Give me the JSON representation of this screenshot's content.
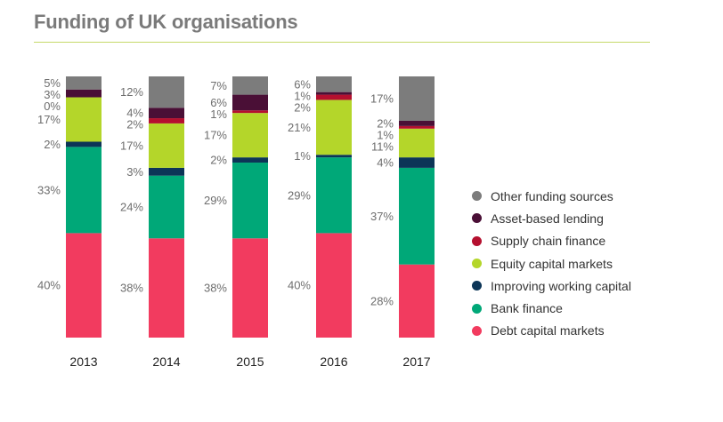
{
  "title": "Funding of UK organisations",
  "chart_data": {
    "type": "bar",
    "stacked": true,
    "title": "Funding of UK organisations",
    "categories": [
      "2013",
      "2014",
      "2015",
      "2016",
      "2017"
    ],
    "value_unit": "%",
    "series": [
      {
        "name": "Debt capital markets",
        "color": "#f23b5f",
        "values": [
          40,
          38,
          38,
          40,
          28
        ],
        "labels": [
          "40%",
          "38%",
          "38%",
          "40%",
          "28%"
        ]
      },
      {
        "name": "Bank finance",
        "color": "#00a878",
        "values": [
          33,
          24,
          29,
          29,
          37
        ],
        "labels": [
          "33%",
          "24%",
          "29%",
          "29%",
          "37%"
        ]
      },
      {
        "name": "Improving working capital",
        "color": "#0c3557",
        "values": [
          2,
          3,
          2,
          1,
          4
        ],
        "labels": [
          "2%",
          "3%",
          "2%",
          "1%",
          "4%"
        ]
      },
      {
        "name": "Equity capital markets",
        "color": "#b4d62a",
        "values": [
          17,
          17,
          17,
          21,
          11
        ],
        "labels": [
          "17%",
          "17%",
          "17%",
          "21%",
          "11%"
        ]
      },
      {
        "name": "Supply chain finance",
        "color": "#b5102f",
        "values": [
          0,
          2,
          1,
          2,
          1
        ],
        "labels": [
          "0%",
          "2%",
          "1%",
          "2%",
          "1%"
        ]
      },
      {
        "name": "Asset-based lending",
        "color": "#4a0f36",
        "values": [
          3,
          4,
          6,
          1,
          2
        ],
        "labels": [
          "3%",
          "4%",
          "6%",
          "1%",
          "2%"
        ]
      },
      {
        "name": "Other funding sources",
        "color": "#7c7c7c",
        "values": [
          5,
          12,
          7,
          6,
          17
        ],
        "labels": [
          "5%",
          "12%",
          "7%",
          "6%",
          "17%"
        ]
      }
    ],
    "legend_order": [
      "Other funding sources",
      "Asset-based lending",
      "Supply chain finance",
      "Equity capital markets",
      "Improving working capital",
      "Bank finance",
      "Debt capital markets"
    ],
    "legend_position": "right"
  }
}
